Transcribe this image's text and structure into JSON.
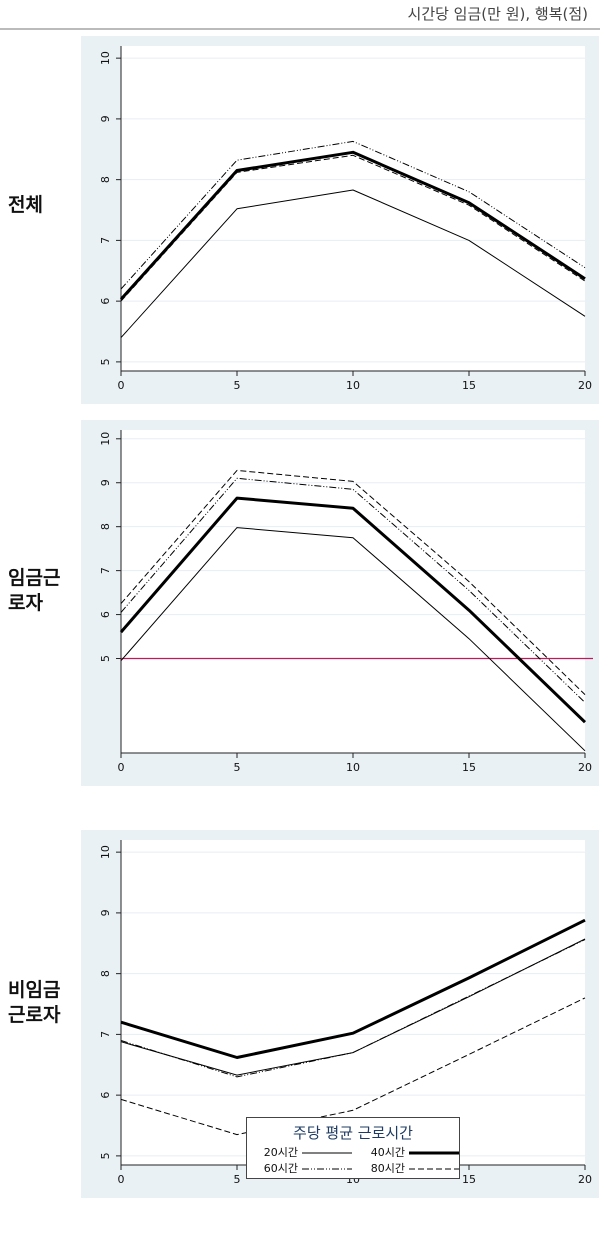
{
  "header": {
    "unit_text": "시간당 임금(만 원), 행복(점)"
  },
  "row_labels": {
    "total": [
      "전체"
    ],
    "wage_workers": [
      "임금근",
      "로자"
    ],
    "non_wage_workers": [
      "비임금",
      "근로자"
    ]
  },
  "colors": {
    "panel_bg": "#e9f1f5",
    "reference_line": "#c2185b",
    "series": "#000000"
  },
  "chart_data": [
    {
      "type": "line",
      "panel": "total",
      "x": [
        0,
        5,
        10,
        15,
        20
      ],
      "xticks": [
        "0",
        "5",
        "10",
        "15",
        "20"
      ],
      "yticks": [
        "5",
        "6",
        "7",
        "8",
        "9",
        "10"
      ],
      "xlim": [
        0,
        20
      ],
      "ylim": [
        4.85,
        10.2
      ],
      "grid": true,
      "series": [
        {
          "name": "20시간",
          "values": [
            5.4,
            7.52,
            7.83,
            7.0,
            5.75
          ]
        },
        {
          "name": "40시간",
          "values": [
            6.03,
            8.15,
            8.45,
            7.62,
            6.37
          ]
        },
        {
          "name": "60시간",
          "values": [
            6.2,
            8.32,
            8.63,
            7.8,
            6.55
          ]
        },
        {
          "name": "80시간",
          "values": [
            6.0,
            8.12,
            8.4,
            7.58,
            6.33
          ]
        }
      ]
    },
    {
      "type": "line",
      "panel": "wage_workers",
      "x": [
        0,
        5,
        10,
        15,
        20
      ],
      "xticks": [
        "0",
        "5",
        "10",
        "15",
        "20"
      ],
      "yticks": [
        "5",
        "6",
        "7",
        "8",
        "9",
        "10"
      ],
      "xlim": [
        0,
        20
      ],
      "ylim": [
        2.85,
        10.2
      ],
      "grid": true,
      "reference_line": 5,
      "series": [
        {
          "name": "20시간",
          "values": [
            4.95,
            7.98,
            7.75,
            5.45,
            2.9
          ]
        },
        {
          "name": "40시간",
          "values": [
            5.6,
            8.65,
            8.42,
            6.1,
            3.55
          ]
        },
        {
          "name": "60시간",
          "values": [
            6.05,
            9.1,
            8.85,
            6.55,
            4.0
          ]
        },
        {
          "name": "80시간",
          "values": [
            6.25,
            9.28,
            9.03,
            6.75,
            4.18
          ]
        }
      ]
    },
    {
      "type": "line",
      "panel": "non_wage_workers",
      "x": [
        0,
        5,
        10,
        15,
        20
      ],
      "xticks": [
        "0",
        "5",
        "10",
        "15",
        "20"
      ],
      "yticks": [
        "5",
        "6",
        "7",
        "8",
        "9",
        "10"
      ],
      "xlim": [
        0,
        20
      ],
      "ylim": [
        4.85,
        10.2
      ],
      "grid": true,
      "series": [
        {
          "name": "20시간",
          "values": [
            6.88,
            6.33,
            6.7,
            7.62,
            8.57
          ]
        },
        {
          "name": "40시간",
          "values": [
            7.2,
            6.62,
            7.02,
            7.93,
            8.88
          ]
        },
        {
          "name": "60시간",
          "values": [
            6.9,
            6.3,
            6.7,
            7.63,
            8.56
          ]
        },
        {
          "name": "80시간",
          "values": [
            5.93,
            5.35,
            5.75,
            6.67,
            7.6
          ]
        }
      ]
    }
  ],
  "legend": {
    "title": "주당 평균 근로시간",
    "items": [
      "20시간",
      "40시간",
      "60시간",
      "80시간"
    ]
  }
}
